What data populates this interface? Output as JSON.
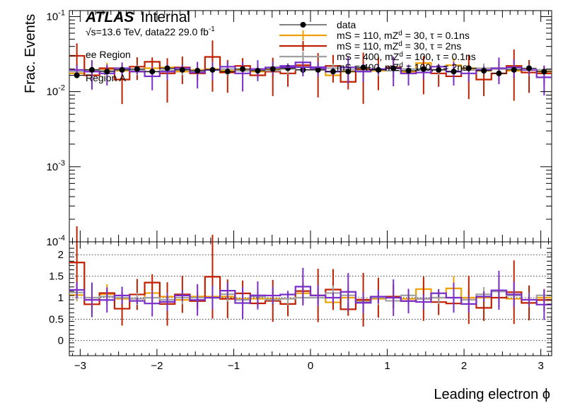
{
  "labels": {
    "atlas": "ATLAS",
    "internal": "Internal",
    "energy_prefix": "√s=13.6 TeV, data22 29.0 fb",
    "energy_sup": "-1",
    "region1": "ee Region",
    "region2": "Region A"
  },
  "chart_data": [
    {
      "type": "histogram",
      "panel": "main",
      "title": "",
      "ylabel": "Frac. Events",
      "yscale": "log",
      "ylim": [
        0.0001,
        0.12
      ],
      "yticks": [
        {
          "value": 0.1,
          "base": "10",
          "exp": "-1"
        },
        {
          "value": 0.01,
          "base": "10",
          "exp": "-2"
        },
        {
          "value": 0.001,
          "base": "10",
          "exp": "-3"
        },
        {
          "value": 0.0001,
          "base": "10",
          "exp": "-4"
        }
      ],
      "x_edges_range": [
        -3.1416,
        3.1416
      ],
      "n_bins": 32,
      "legend_position": "top-center",
      "series": [
        {
          "name": "data",
          "color": "#000000",
          "style": "points",
          "values": [
            0.0165,
            0.0195,
            0.0185,
            0.0195,
            0.02,
            0.0185,
            0.0205,
            0.0195,
            0.019,
            0.0195,
            0.0185,
            0.02,
            0.019,
            0.02,
            0.0205,
            0.0195,
            0.0195,
            0.0185,
            0.0185,
            0.021,
            0.0195,
            0.0205,
            0.019,
            0.02,
            0.0195,
            0.0185,
            0.0205,
            0.019,
            0.0175,
            0.0195,
            0.0205,
            0.0185
          ]
        },
        {
          "name": "mS = 110, mZ_{d} = 30, τ = 0.1ns",
          "legend_parts": [
            "mS = 110, mZ",
            "d",
            " = 30, τ = 0.1ns"
          ],
          "color": "#f0a000",
          "style": "hist",
          "values": [
            0.0175,
            0.0195,
            0.02,
            0.019,
            0.0185,
            0.0205,
            0.021,
            0.0185,
            0.0195,
            0.02,
            0.019,
            0.0195,
            0.0185,
            0.0195,
            0.02,
            0.0215,
            0.0205,
            0.0165,
            0.0185,
            0.0195,
            0.019,
            0.0205,
            0.0185,
            0.024,
            0.0195,
            0.0225,
            0.0205,
            0.019,
            0.0205,
            0.019,
            0.0195,
            0.0185
          ]
        },
        {
          "name": "mS = 110, mZ_{d} = 30, τ = 2ns",
          "legend_parts": [
            "mS = 110, mZ",
            "d",
            " = 30, τ = 2ns"
          ],
          "color": "#c02000",
          "style": "hist",
          "values": [
            0.03,
            0.0165,
            0.0205,
            0.0145,
            0.0215,
            0.025,
            0.0175,
            0.021,
            0.0175,
            0.029,
            0.018,
            0.022,
            0.0165,
            0.0185,
            0.0175,
            0.0225,
            0.0205,
            0.022,
            0.0135,
            0.02,
            0.0195,
            0.021,
            0.0175,
            0.0195,
            0.0175,
            0.016,
            0.0195,
            0.0145,
            0.0175,
            0.022,
            0.018,
            0.0175
          ]
        },
        {
          "name": "mS = 400, mZ_{d} = 100, τ = 0.1ns",
          "legend_parts": [
            "mS = 400, mZ",
            "d",
            " = 100, τ = 0.1ns"
          ],
          "color": "#a0a0a0",
          "style": "hist",
          "values": [
            0.0185,
            0.0195,
            0.019,
            0.0195,
            0.0195,
            0.0185,
            0.0195,
            0.0195,
            0.019,
            0.0195,
            0.02,
            0.019,
            0.0195,
            0.019,
            0.02,
            0.0195,
            0.0195,
            0.0205,
            0.0195,
            0.019,
            0.0195,
            0.019,
            0.02,
            0.0195,
            0.0195,
            0.0185,
            0.0195,
            0.0205,
            0.02,
            0.0205,
            0.0195,
            0.0195
          ]
        },
        {
          "name": "mS = 400, mZ_{d} = 100, τ = 2ns",
          "legend_parts": [
            "mS = 400, mZ",
            "d",
            " = 100, τ = 2ns"
          ],
          "color": "#7a30c8",
          "style": "hist",
          "values": [
            0.0195,
            0.0185,
            0.0175,
            0.0205,
            0.0185,
            0.016,
            0.0185,
            0.0205,
            0.018,
            0.0195,
            0.0215,
            0.0175,
            0.02,
            0.021,
            0.022,
            0.0245,
            0.0205,
            0.0185,
            0.021,
            0.0185,
            0.02,
            0.0205,
            0.0175,
            0.018,
            0.0215,
            0.0185,
            0.0175,
            0.0195,
            0.0205,
            0.021,
            0.0195,
            0.0155
          ]
        }
      ]
    },
    {
      "type": "ratio",
      "panel": "ratio",
      "xlabel": "Leading electron ϕ",
      "ylim": [
        -0.35,
        2.3
      ],
      "yticks": [
        0,
        0.5,
        1,
        1.5,
        2
      ],
      "ytick_labels": [
        "0",
        "0.5",
        "1",
        "1.5",
        "2"
      ],
      "xlim": [
        -3.1416,
        3.1416
      ],
      "xticks": [
        -3,
        -2,
        -1,
        0,
        1,
        2,
        3
      ],
      "xtick_labels": [
        "−3",
        "−2",
        "−1",
        "0",
        "1",
        "2",
        "3"
      ],
      "grid_y": [
        0,
        0.5,
        1,
        1.5,
        2
      ]
    }
  ]
}
